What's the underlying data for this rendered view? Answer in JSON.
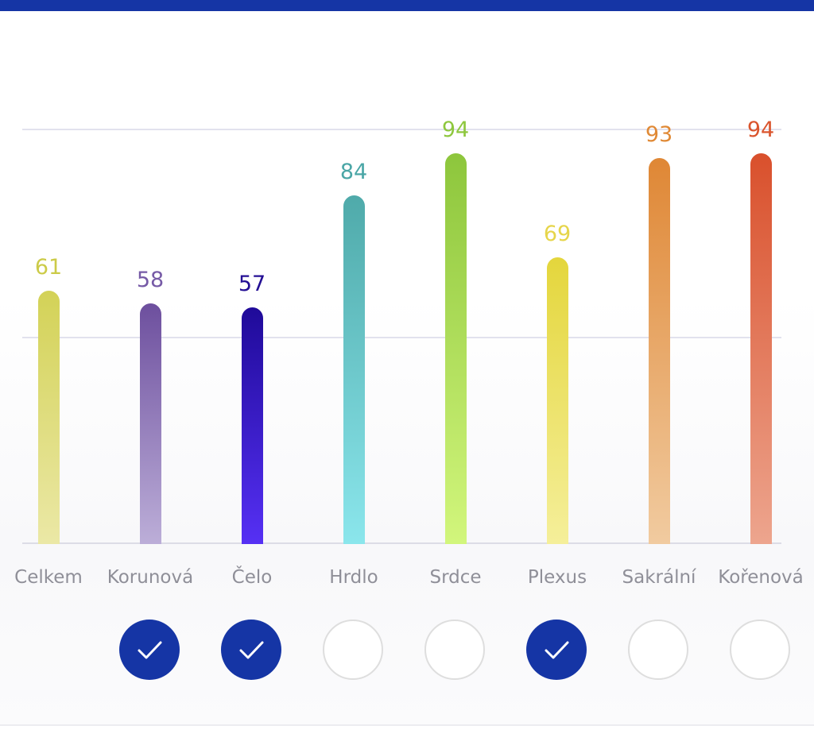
{
  "chart_data": {
    "type": "bar",
    "categories": [
      "Celkem",
      "Korunová",
      "Čelo",
      "Hrdlo",
      "Srdce",
      "Plexus",
      "Sakrální",
      "Kořenová"
    ],
    "values": [
      61,
      58,
      57,
      84,
      94,
      69,
      93,
      94
    ],
    "ylim": [
      0,
      100
    ],
    "grid": true
  },
  "colors": {
    "accent": "#1535a5",
    "bars": [
      {
        "top": "#d3d257",
        "bottom": "#ebe8a6",
        "label": "#cccb48"
      },
      {
        "top": "#6d4f9e",
        "bottom": "#bcaed8",
        "label": "#765aa6"
      },
      {
        "top": "#1f0a99",
        "bottom": "#5630f4",
        "label": "#230e94"
      },
      {
        "top": "#4faaaa",
        "bottom": "#8be6ec",
        "label": "#4aa6a6"
      },
      {
        "top": "#8dc63c",
        "bottom": "#d2f67c",
        "label": "#8ec73e"
      },
      {
        "top": "#e4d63c",
        "bottom": "#f5ef9a",
        "label": "#e6d54a"
      },
      {
        "top": "#df8735",
        "bottom": "#f1cba0",
        "label": "#e08935"
      },
      {
        "top": "#d9502c",
        "bottom": "#eda58e",
        "label": "#da552e"
      }
    ]
  },
  "toggles": [
    {
      "checked": true,
      "icon": "check-icon"
    },
    {
      "checked": true,
      "icon": "check-icon"
    },
    {
      "checked": false
    },
    {
      "checked": false
    },
    {
      "checked": true,
      "icon": "check-icon"
    },
    {
      "checked": false
    },
    {
      "checked": false
    }
  ]
}
